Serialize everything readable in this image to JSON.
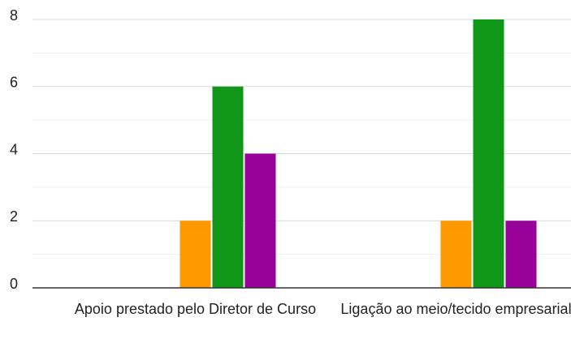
{
  "chart_data": {
    "type": "bar",
    "categories": [
      "Apoio prestado pelo Diretor de Curso",
      "Ligação ao meio/tecido empresarial"
    ],
    "series": [
      {
        "color": "#3366cc",
        "values": [
          0,
          0
        ]
      },
      {
        "color": "#dc3912",
        "values": [
          0,
          0
        ]
      },
      {
        "color": "#ff9900",
        "values": [
          2,
          2
        ]
      },
      {
        "color": "#109618",
        "values": [
          6,
          8
        ]
      },
      {
        "color": "#990099",
        "values": [
          4,
          2
        ]
      }
    ],
    "ylim": [
      0,
      8
    ],
    "yticks": [
      0,
      2,
      4,
      6,
      8
    ],
    "minor_yticks": [
      1,
      3,
      5,
      7
    ],
    "grid": true
  }
}
